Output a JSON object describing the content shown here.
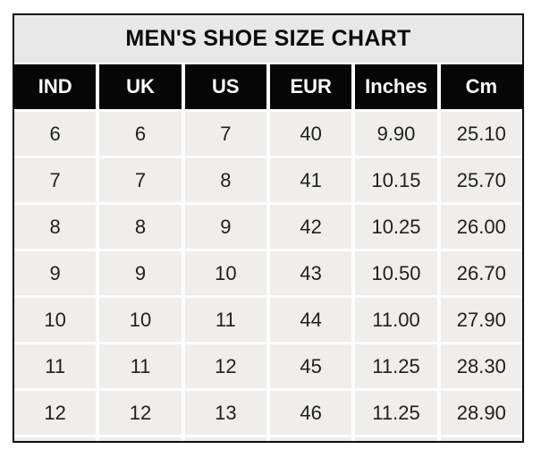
{
  "title": "MEN'S SHOE SIZE CHART",
  "table": {
    "columns": [
      "IND",
      "UK",
      "US",
      "EUR",
      "Inches",
      "Cm"
    ],
    "rows": [
      [
        "6",
        "6",
        "7",
        "40",
        "9.90",
        "25.10"
      ],
      [
        "7",
        "7",
        "8",
        "41",
        "10.15",
        "25.70"
      ],
      [
        "8",
        "8",
        "9",
        "42",
        "10.25",
        "26.00"
      ],
      [
        "9",
        "9",
        "10",
        "43",
        "10.50",
        "26.70"
      ],
      [
        "10",
        "10",
        "11",
        "44",
        "11.00",
        "27.90"
      ],
      [
        "11",
        "11",
        "12",
        "45",
        "11.25",
        "28.30"
      ],
      [
        "12",
        "12",
        "13",
        "46",
        "11.25",
        "28.90"
      ]
    ]
  },
  "colors": {
    "border": "#0d0d0d",
    "title_bg": "#e9e8e8",
    "title_text": "#0b0b0b",
    "header_bg": "#060606",
    "header_text": "#fdfdfd",
    "cell_bg": "#efeeed",
    "body_text": "#1f1f1f",
    "gap": "#fdfdfd",
    "page_bg": "#ffffff"
  }
}
